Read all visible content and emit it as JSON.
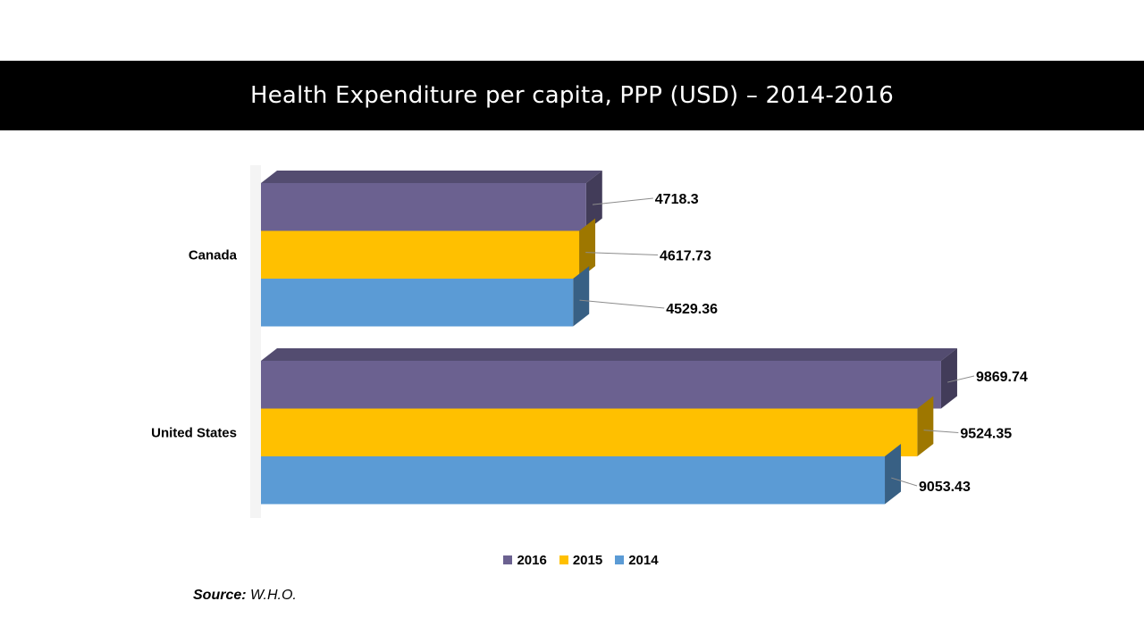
{
  "chart_data": {
    "type": "bar",
    "orientation": "horizontal",
    "style": "3d-clustered",
    "title": "Health Expenditure per capita, PPP (USD) – 2014-2016",
    "categories": [
      "Canada",
      "United States"
    ],
    "series": [
      {
        "name": "2016",
        "values": [
          4718.3,
          9869.74
        ],
        "color": "#6b6190"
      },
      {
        "name": "2015",
        "values": [
          4617.73,
          9524.35
        ],
        "color": "#ffc000"
      },
      {
        "name": "2014",
        "values": [
          4529.36,
          9053.43
        ],
        "color": "#5b9bd5"
      }
    ],
    "data_labels": [
      [
        "4718.3",
        "4617.73",
        "4529.36"
      ],
      [
        "9869.74",
        "9524.35",
        "9053.43"
      ]
    ],
    "xlim": [
      0,
      10000
    ],
    "grid": false,
    "legend_position": "bottom"
  },
  "legend": [
    {
      "label": "2016",
      "color": "#6b6190"
    },
    {
      "label": "2015",
      "color": "#ffc000"
    },
    {
      "label": "2014",
      "color": "#5b9bd5"
    }
  ],
  "source": {
    "label": "Source:",
    "text": " W.H.O."
  }
}
